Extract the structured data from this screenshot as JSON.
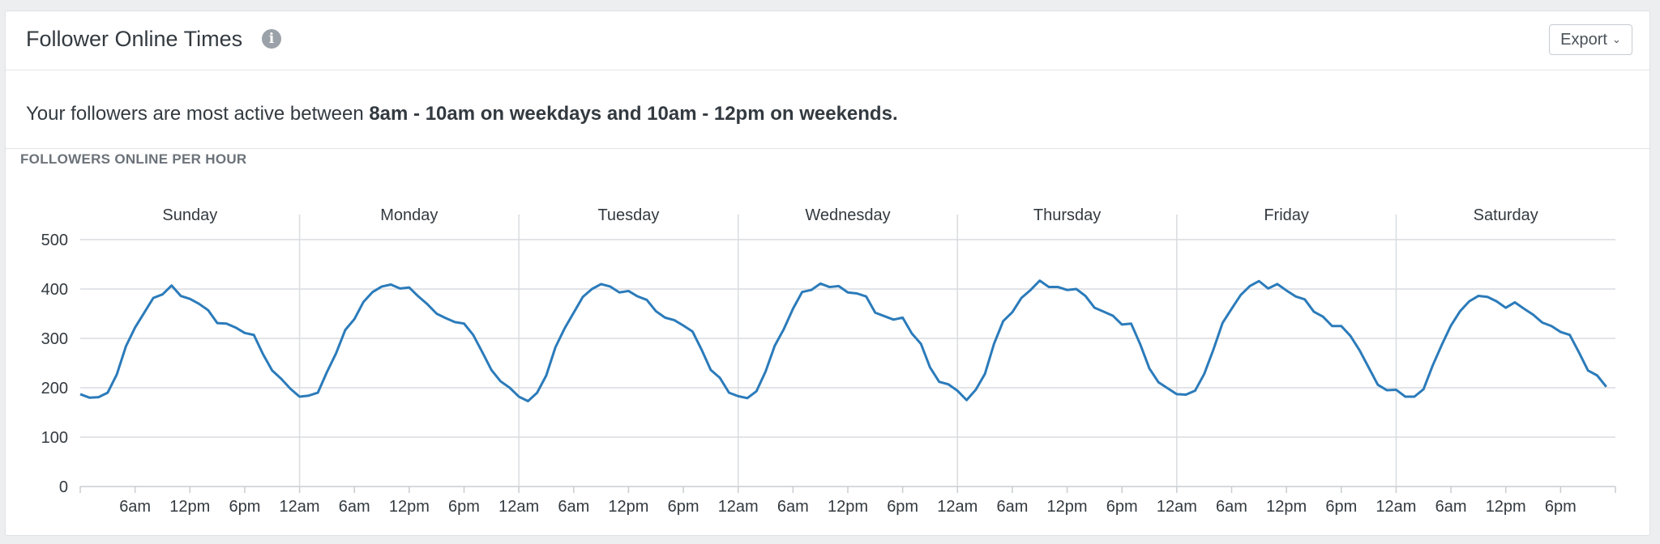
{
  "header": {
    "title": "Follower Online Times",
    "info_icon": "info-icon",
    "info_glyph": "i",
    "export_label": "Export",
    "export_chevron": "⌄"
  },
  "summary": {
    "prefix": "Your followers are most active between ",
    "highlight": "8am - 10am on weekdays and 10am - 12pm on weekends."
  },
  "chart_data": {
    "type": "line",
    "title": "FOLLOWERS ONLINE PER HOUR",
    "days": [
      "Sunday",
      "Monday",
      "Tuesday",
      "Wednesday",
      "Thursday",
      "Friday",
      "Saturday"
    ],
    "x_tick_labels": [
      "6am",
      "12pm",
      "6pm",
      "12am"
    ],
    "y_ticks": [
      0,
      100,
      200,
      300,
      400,
      500
    ],
    "ylim": [
      0,
      500
    ],
    "grid": true,
    "line_color": "#2b7bba",
    "series": [
      {
        "values": [
          187,
          180,
          181,
          190,
          227,
          284,
          322,
          352,
          382,
          389,
          407,
          386,
          380,
          370,
          357,
          331,
          330,
          322,
          311,
          307,
          268,
          235,
          218,
          198,
          182,
          184,
          190,
          232,
          270,
          317,
          339,
          374,
          394,
          405,
          409,
          401,
          403,
          385,
          369,
          350,
          341,
          333,
          330,
          307,
          272,
          236,
          213,
          200,
          182,
          173,
          190,
          225,
          282,
          320,
          352,
          384,
          400,
          410,
          405,
          393,
          396,
          385,
          378,
          355,
          342,
          337,
          326,
          314,
          277,
          236,
          220,
          190,
          183,
          179,
          193,
          233,
          285,
          319,
          360,
          394,
          398,
          411,
          404,
          406,
          393,
          391,
          385,
          352,
          345,
          338,
          342,
          310,
          289,
          241,
          212,
          207,
          194,
          175,
          196,
          228,
          289,
          335,
          353,
          382,
          398,
          417,
          404,
          404,
          398,
          400,
          386,
          362,
          354,
          346,
          328,
          330,
          288,
          239,
          211,
          199,
          187,
          186,
          194,
          228,
          277,
          331,
          360,
          388,
          406,
          416,
          401,
          410,
          397,
          385,
          379,
          354,
          344,
          325,
          325,
          305,
          276,
          241,
          206,
          195,
          196,
          182,
          182,
          197,
          245,
          287,
          326,
          355,
          375,
          386,
          384,
          375,
          362,
          373,
          360,
          348,
          332,
          325,
          313,
          307,
          272,
          235,
          225,
          202
        ]
      }
    ]
  }
}
